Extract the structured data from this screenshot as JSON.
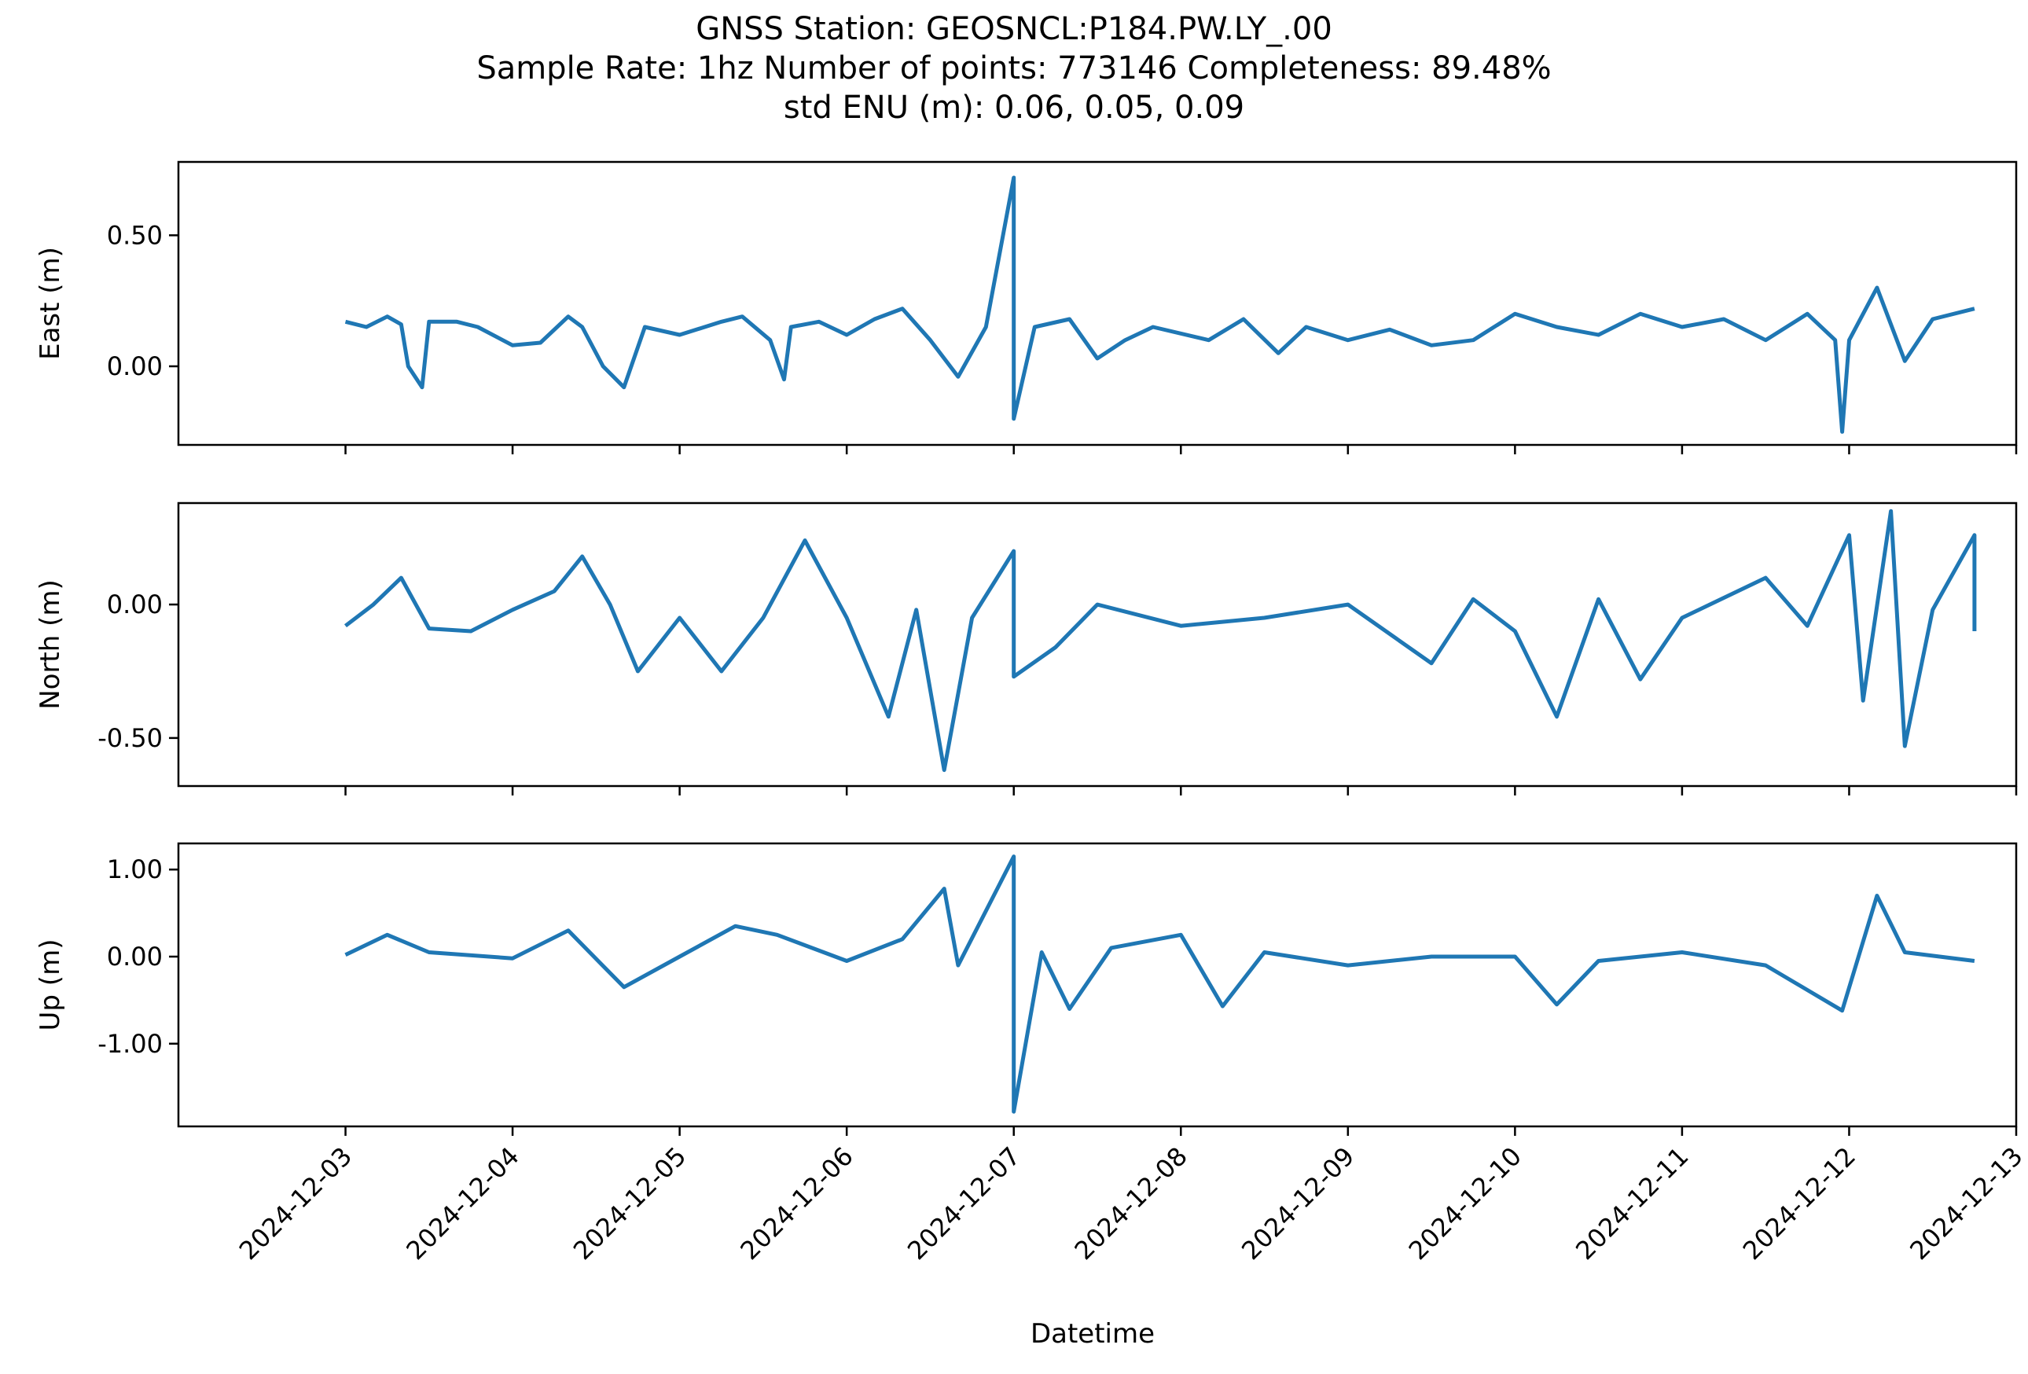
{
  "chart_data": {
    "type": "line",
    "title": [
      "GNSS Station: GEOSNCL:P184.PW.LY_.00",
      "Sample Rate: 1hz   Number of points: 773146    Completeness:  89.48%",
      "std ENU (m):  0.06, 0.05, 0.09"
    ],
    "xlabel": "Datetime",
    "x_ticks": [
      "2024-12-03",
      "2024-12-04",
      "2024-12-05",
      "2024-12-06",
      "2024-12-07",
      "2024-12-08",
      "2024-12-09",
      "2024-12-10",
      "2024-12-11",
      "2024-12-12",
      "2024-12-13"
    ],
    "xlim": [
      "2024-12-02",
      "2024-12-13"
    ],
    "line_color": "#1f77b4",
    "panels": [
      {
        "ylabel": "East (m)",
        "ylim": [
          -0.3,
          0.78
        ],
        "y_ticks": [
          {
            "value": 0.5,
            "label": "0.50"
          },
          {
            "value": 0.0,
            "label": "0.00"
          }
        ],
        "series": [
          {
            "x": "2024-12-03T00:00",
            "y": 0.17
          },
          {
            "x": "2024-12-03T03:00",
            "y": 0.15
          },
          {
            "x": "2024-12-03T06:00",
            "y": 0.19
          },
          {
            "x": "2024-12-03T08:00",
            "y": 0.16
          },
          {
            "x": "2024-12-03T09:00",
            "y": 0.0
          },
          {
            "x": "2024-12-03T11:00",
            "y": -0.08
          },
          {
            "x": "2024-12-03T12:00",
            "y": 0.17
          },
          {
            "x": "2024-12-03T16:00",
            "y": 0.17
          },
          {
            "x": "2024-12-03T19:00",
            "y": 0.15
          },
          {
            "x": "2024-12-04T00:00",
            "y": 0.08
          },
          {
            "x": "2024-12-04T04:00",
            "y": 0.09
          },
          {
            "x": "2024-12-04T08:00",
            "y": 0.19
          },
          {
            "x": "2024-12-04T10:00",
            "y": 0.15
          },
          {
            "x": "2024-12-04T13:00",
            "y": 0.0
          },
          {
            "x": "2024-12-04T16:00",
            "y": -0.08
          },
          {
            "x": "2024-12-04T19:00",
            "y": 0.15
          },
          {
            "x": "2024-12-05T00:00",
            "y": 0.12
          },
          {
            "x": "2024-12-05T06:00",
            "y": 0.17
          },
          {
            "x": "2024-12-05T09:00",
            "y": 0.19
          },
          {
            "x": "2024-12-05T13:00",
            "y": 0.1
          },
          {
            "x": "2024-12-05T15:00",
            "y": -0.05
          },
          {
            "x": "2024-12-05T16:00",
            "y": 0.15
          },
          {
            "x": "2024-12-05T20:00",
            "y": 0.17
          },
          {
            "x": "2024-12-06T00:00",
            "y": 0.12
          },
          {
            "x": "2024-12-06T04:00",
            "y": 0.18
          },
          {
            "x": "2024-12-06T08:00",
            "y": 0.22
          },
          {
            "x": "2024-12-06T12:00",
            "y": 0.1
          },
          {
            "x": "2024-12-06T16:00",
            "y": -0.04
          },
          {
            "x": "2024-12-06T20:00",
            "y": 0.15
          },
          {
            "x": "2024-12-07T00:00",
            "y": 0.72
          },
          {
            "x": "2024-12-07T00:00",
            "y": -0.2
          },
          {
            "x": "2024-12-07T03:00",
            "y": 0.15
          },
          {
            "x": "2024-12-07T08:00",
            "y": 0.18
          },
          {
            "x": "2024-12-07T12:00",
            "y": 0.03
          },
          {
            "x": "2024-12-07T16:00",
            "y": 0.1
          },
          {
            "x": "2024-12-07T20:00",
            "y": 0.15
          },
          {
            "x": "2024-12-08T04:00",
            "y": 0.1
          },
          {
            "x": "2024-12-08T09:00",
            "y": 0.18
          },
          {
            "x": "2024-12-08T14:00",
            "y": 0.05
          },
          {
            "x": "2024-12-08T18:00",
            "y": 0.15
          },
          {
            "x": "2024-12-09T00:00",
            "y": 0.1
          },
          {
            "x": "2024-12-09T06:00",
            "y": 0.14
          },
          {
            "x": "2024-12-09T12:00",
            "y": 0.08
          },
          {
            "x": "2024-12-09T18:00",
            "y": 0.1
          },
          {
            "x": "2024-12-10T00:00",
            "y": 0.2
          },
          {
            "x": "2024-12-10T06:00",
            "y": 0.15
          },
          {
            "x": "2024-12-10T12:00",
            "y": 0.12
          },
          {
            "x": "2024-12-10T18:00",
            "y": 0.2
          },
          {
            "x": "2024-12-11T00:00",
            "y": 0.15
          },
          {
            "x": "2024-12-11T06:00",
            "y": 0.18
          },
          {
            "x": "2024-12-11T12:00",
            "y": 0.1
          },
          {
            "x": "2024-12-11T18:00",
            "y": 0.2
          },
          {
            "x": "2024-12-11T22:00",
            "y": 0.1
          },
          {
            "x": "2024-12-11T23:00",
            "y": -0.25
          },
          {
            "x": "2024-12-12T00:00",
            "y": 0.1
          },
          {
            "x": "2024-12-12T04:00",
            "y": 0.3
          },
          {
            "x": "2024-12-12T08:00",
            "y": 0.02
          },
          {
            "x": "2024-12-12T12:00",
            "y": 0.18
          },
          {
            "x": "2024-12-12T18:00",
            "y": 0.22
          }
        ]
      },
      {
        "ylabel": "North (m)",
        "ylim": [
          -0.68,
          0.38
        ],
        "y_ticks": [
          {
            "value": 0.0,
            "label": "0.00"
          },
          {
            "value": -0.5,
            "label": "-0.50"
          }
        ],
        "series": [
          {
            "x": "2024-12-03T00:00",
            "y": -0.08
          },
          {
            "x": "2024-12-03T04:00",
            "y": 0.0
          },
          {
            "x": "2024-12-03T08:00",
            "y": 0.1
          },
          {
            "x": "2024-12-03T12:00",
            "y": -0.09
          },
          {
            "x": "2024-12-03T18:00",
            "y": -0.1
          },
          {
            "x": "2024-12-04T00:00",
            "y": -0.02
          },
          {
            "x": "2024-12-04T06:00",
            "y": 0.05
          },
          {
            "x": "2024-12-04T10:00",
            "y": 0.18
          },
          {
            "x": "2024-12-04T14:00",
            "y": 0.0
          },
          {
            "x": "2024-12-04T18:00",
            "y": -0.25
          },
          {
            "x": "2024-12-05T00:00",
            "y": -0.05
          },
          {
            "x": "2024-12-05T06:00",
            "y": -0.25
          },
          {
            "x": "2024-12-05T12:00",
            "y": -0.05
          },
          {
            "x": "2024-12-05T18:00",
            "y": 0.24
          },
          {
            "x": "2024-12-06T00:00",
            "y": -0.05
          },
          {
            "x": "2024-12-06T06:00",
            "y": -0.42
          },
          {
            "x": "2024-12-06T10:00",
            "y": -0.02
          },
          {
            "x": "2024-12-06T14:00",
            "y": -0.62
          },
          {
            "x": "2024-12-06T18:00",
            "y": -0.05
          },
          {
            "x": "2024-12-07T00:00",
            "y": 0.2
          },
          {
            "x": "2024-12-07T00:00",
            "y": -0.27
          },
          {
            "x": "2024-12-07T06:00",
            "y": -0.16
          },
          {
            "x": "2024-12-07T12:00",
            "y": 0.0
          },
          {
            "x": "2024-12-08T00:00",
            "y": -0.08
          },
          {
            "x": "2024-12-08T12:00",
            "y": -0.05
          },
          {
            "x": "2024-12-09T00:00",
            "y": 0.0
          },
          {
            "x": "2024-12-09T12:00",
            "y": -0.22
          },
          {
            "x": "2024-12-09T18:00",
            "y": 0.02
          },
          {
            "x": "2024-12-10T00:00",
            "y": -0.1
          },
          {
            "x": "2024-12-10T06:00",
            "y": -0.42
          },
          {
            "x": "2024-12-10T12:00",
            "y": 0.02
          },
          {
            "x": "2024-12-10T18:00",
            "y": -0.28
          },
          {
            "x": "2024-12-11T00:00",
            "y": -0.05
          },
          {
            "x": "2024-12-11T12:00",
            "y": 0.1
          },
          {
            "x": "2024-12-11T18:00",
            "y": -0.08
          },
          {
            "x": "2024-12-12T00:00",
            "y": 0.26
          },
          {
            "x": "2024-12-12T02:00",
            "y": -0.36
          },
          {
            "x": "2024-12-12T06:00",
            "y": 0.35
          },
          {
            "x": "2024-12-12T08:00",
            "y": -0.53
          },
          {
            "x": "2024-12-12T12:00",
            "y": -0.02
          },
          {
            "x": "2024-12-12T18:00",
            "y": 0.26
          },
          {
            "x": "2024-12-12T18:00",
            "y": -0.1
          }
        ]
      },
      {
        "ylabel": "Up (m)",
        "ylim": [
          -1.95,
          1.3
        ],
        "y_ticks": [
          {
            "value": 1.0,
            "label": "1.00"
          },
          {
            "value": 0.0,
            "label": "0.00"
          },
          {
            "value": -1.0,
            "label": "-1.00"
          }
        ],
        "series": [
          {
            "x": "2024-12-03T00:00",
            "y": 0.02
          },
          {
            "x": "2024-12-03T06:00",
            "y": 0.25
          },
          {
            "x": "2024-12-03T12:00",
            "y": 0.05
          },
          {
            "x": "2024-12-04T00:00",
            "y": -0.02
          },
          {
            "x": "2024-12-04T08:00",
            "y": 0.3
          },
          {
            "x": "2024-12-04T16:00",
            "y": -0.35
          },
          {
            "x": "2024-12-05T00:00",
            "y": 0.0
          },
          {
            "x": "2024-12-05T08:00",
            "y": 0.35
          },
          {
            "x": "2024-12-05T14:00",
            "y": 0.25
          },
          {
            "x": "2024-12-06T00:00",
            "y": -0.05
          },
          {
            "x": "2024-12-06T08:00",
            "y": 0.2
          },
          {
            "x": "2024-12-06T14:00",
            "y": 0.78
          },
          {
            "x": "2024-12-06T16:00",
            "y": -0.1
          },
          {
            "x": "2024-12-07T00:00",
            "y": 1.15
          },
          {
            "x": "2024-12-07T00:00",
            "y": -1.78
          },
          {
            "x": "2024-12-07T04:00",
            "y": 0.05
          },
          {
            "x": "2024-12-07T08:00",
            "y": -0.6
          },
          {
            "x": "2024-12-07T14:00",
            "y": 0.1
          },
          {
            "x": "2024-12-08T00:00",
            "y": 0.25
          },
          {
            "x": "2024-12-08T06:00",
            "y": -0.57
          },
          {
            "x": "2024-12-08T12:00",
            "y": 0.05
          },
          {
            "x": "2024-12-09T00:00",
            "y": -0.1
          },
          {
            "x": "2024-12-09T12:00",
            "y": 0.0
          },
          {
            "x": "2024-12-10T00:00",
            "y": 0.0
          },
          {
            "x": "2024-12-10T06:00",
            "y": -0.55
          },
          {
            "x": "2024-12-10T12:00",
            "y": -0.05
          },
          {
            "x": "2024-12-11T00:00",
            "y": 0.05
          },
          {
            "x": "2024-12-11T12:00",
            "y": -0.1
          },
          {
            "x": "2024-12-11T23:00",
            "y": -0.62
          },
          {
            "x": "2024-12-12T04:00",
            "y": 0.7
          },
          {
            "x": "2024-12-12T08:00",
            "y": 0.05
          },
          {
            "x": "2024-12-12T18:00",
            "y": -0.05
          }
        ]
      }
    ]
  }
}
